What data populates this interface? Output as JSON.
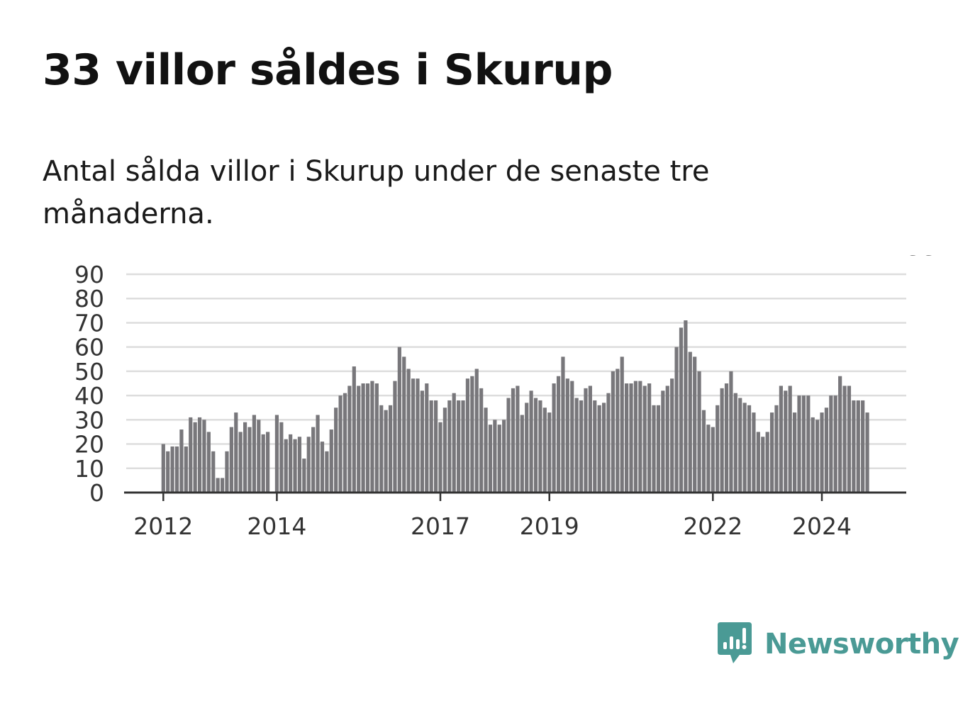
{
  "title": "33 villor såldes i Skurup",
  "subtitle": "Antal sålda villor i Skurup under de senaste tre månaderna.",
  "brand": {
    "name": "Newsworthy",
    "color": "#4a9a95",
    "icon": "newsworthy-logo-icon"
  },
  "colors": {
    "bar": "#78777b",
    "highlight": "#26918b",
    "grid": "#dddddd",
    "axis": "#333333"
  },
  "chart_data": {
    "type": "bar",
    "title": "",
    "xlabel": "",
    "ylabel": "",
    "ylim": [
      0,
      90
    ],
    "yticks": [
      0,
      10,
      20,
      30,
      40,
      50,
      60,
      70,
      80,
      90
    ],
    "grid": true,
    "x_start": "2012-01",
    "x_step": "month",
    "xtick_labels": [
      {
        "label": "2012",
        "x": "2012-01"
      },
      {
        "label": "2014",
        "x": "2014-01"
      },
      {
        "label": "2017",
        "x": "2017-01"
      },
      {
        "label": "2019",
        "x": "2019-01"
      },
      {
        "label": "2022",
        "x": "2022-01"
      },
      {
        "label": "2024",
        "x": "2024-01"
      }
    ],
    "values": [
      20,
      17,
      19,
      19,
      26,
      19,
      31,
      29,
      31,
      30,
      25,
      17,
      6,
      6,
      17,
      27,
      33,
      25,
      29,
      27,
      32,
      30,
      24,
      25,
      32,
      29,
      22,
      24,
      22,
      23,
      14,
      23,
      27,
      32,
      21,
      17,
      26,
      35,
      40,
      41,
      44,
      52,
      44,
      45,
      45,
      46,
      45,
      36,
      34,
      36,
      46,
      60,
      56,
      51,
      47,
      47,
      42,
      45,
      38,
      38,
      29,
      35,
      38,
      41,
      38,
      38,
      47,
      48,
      51,
      43,
      35,
      28,
      30,
      28,
      30,
      39,
      43,
      44,
      32,
      37,
      42,
      39,
      38,
      35,
      33,
      45,
      48,
      56,
      47,
      46,
      39,
      38,
      43,
      44,
      38,
      36,
      37,
      41,
      50,
      51,
      56,
      45,
      45,
      46,
      46,
      44,
      45,
      36,
      36,
      42,
      44,
      47,
      60,
      68,
      71,
      58,
      56,
      50,
      34,
      28,
      27,
      36,
      43,
      45,
      50,
      41,
      39,
      37,
      36,
      33,
      25,
      23,
      25,
      33,
      36,
      44,
      42,
      44,
      33,
      40,
      40,
      40,
      31,
      30,
      33,
      35,
      40,
      40,
      48,
      44,
      44,
      38,
      38,
      38,
      33
    ],
    "gap_after_index": 23,
    "highlight_index": 166,
    "highlight_label": "33"
  }
}
